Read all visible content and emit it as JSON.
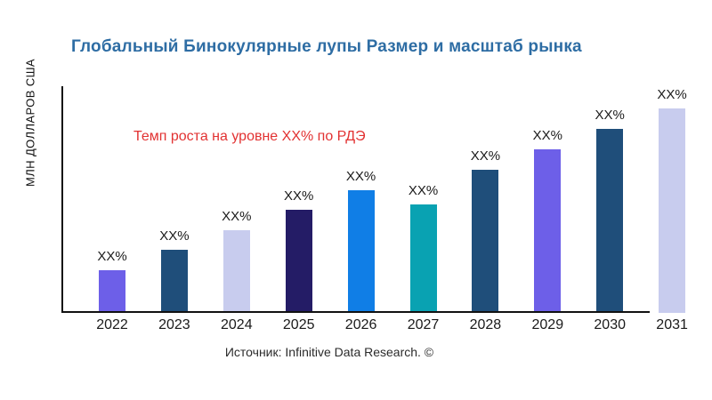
{
  "header": {
    "title": "Глобальный Бинокулярные лупы Размер и масштаб рынка",
    "title_color": "#2E6DA4"
  },
  "axis": {
    "y_label": "МЛН ДОЛЛАРОВ США"
  },
  "annotation": {
    "text": "Темп роста на уровне XX% по РДЭ",
    "color": "#E23232"
  },
  "footer": {
    "source": "Источник: Infinitive Data Research. ©"
  },
  "chart_data": {
    "type": "bar",
    "title": "Глобальный Бинокулярные лупы Размер и масштаб рынка",
    "xlabel": "",
    "ylabel": "МЛН ДОЛЛАРОВ США",
    "categories": [
      "2022",
      "2023",
      "2024",
      "2025",
      "2026",
      "2027",
      "2028",
      "2029",
      "2030",
      "2031"
    ],
    "bar_labels": [
      "XX%",
      "XX%",
      "XX%",
      "XX%",
      "XX%",
      "XX%",
      "XX%",
      "XX%",
      "XX%",
      "XX%"
    ],
    "values_relative": [
      20.9,
      30.9,
      40.4,
      50.4,
      60.0,
      53.0,
      70.0,
      80.0,
      90.0,
      100.0
    ],
    "colors": [
      "#6D5FE8",
      "#1F4E7A",
      "#C8CCEE",
      "#241C66",
      "#107EE6",
      "#09A2B2",
      "#1F4E7A",
      "#6D5FE8",
      "#1F4E7A",
      "#C8CCEE"
    ],
    "annotation": "Темп роста на уровне XX% по РДЭ",
    "legend": "none",
    "grid": "off",
    "source": "Источник: Infinitive Data Research. ©"
  }
}
